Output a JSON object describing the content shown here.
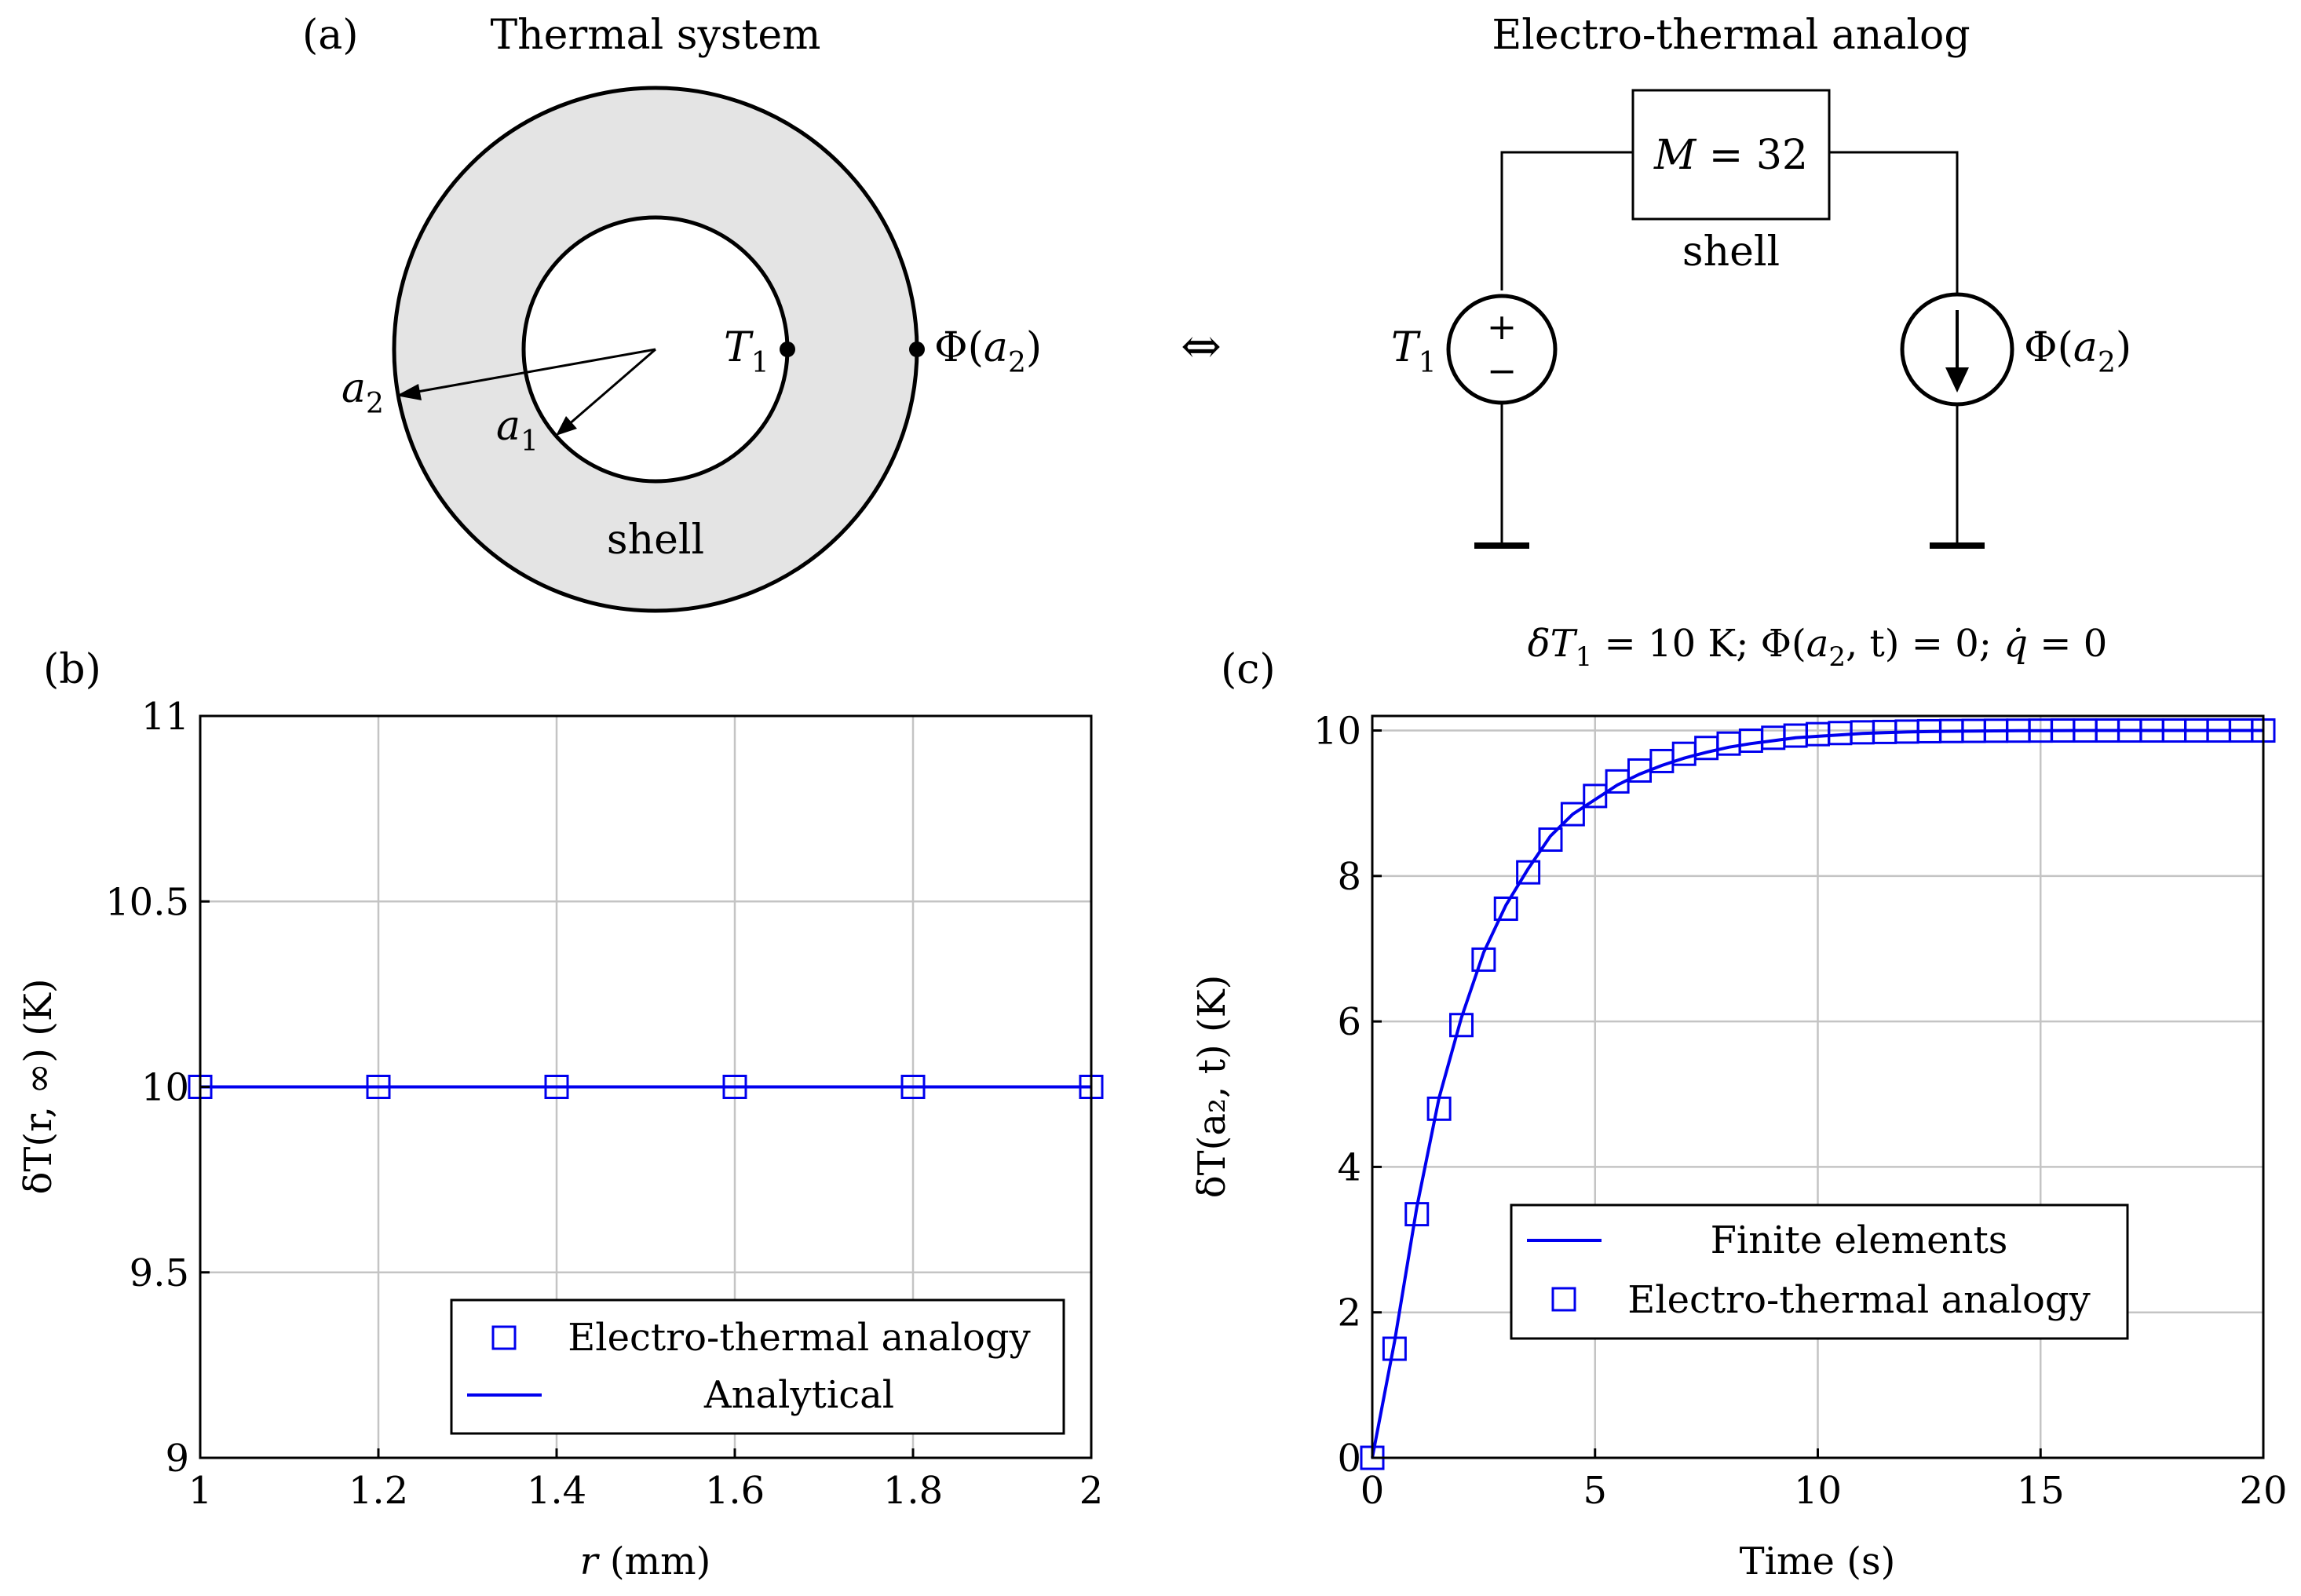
{
  "panel_a": {
    "label": "(a)",
    "thermal_title": "Thermal system",
    "analog_title": "Electro-thermal analog",
    "equivalence_symbol": "⇔",
    "shell_label": "shell",
    "a1_label": "a",
    "a1_sub": "1",
    "a2_label": "a",
    "a2_sub": "2",
    "t1_label": "T",
    "t1_sub": "1",
    "phi_label": "Φ(",
    "phi_var": "a",
    "phi_sub": "2",
    "phi_close": ")",
    "circuit": {
      "box_label": "M",
      "box_eq": " = 32",
      "box_caption": "shell",
      "src_label": "T",
      "src_sub": "1",
      "plus": "+",
      "minus": "−",
      "cur_label": "Φ(",
      "cur_var": "a",
      "cur_sub": "2",
      "cur_close": ")"
    },
    "colors": {
      "shell_fill": "#e4e4e4",
      "stroke": "#000000"
    }
  },
  "panel_b": {
    "label": "(b)",
    "chart_data": {
      "type": "line",
      "x": [
        1,
        1.2,
        1.4,
        1.6,
        1.8,
        2
      ],
      "series": [
        {
          "name": "Electro-thermal analogy",
          "marker": "square",
          "values": [
            10,
            10,
            10,
            10,
            10,
            10
          ]
        },
        {
          "name": "Analytical",
          "marker": "line",
          "values": [
            10,
            10,
            10,
            10,
            10,
            10
          ]
        }
      ],
      "xlim": [
        1,
        2
      ],
      "ylim": [
        9,
        11
      ],
      "xticks": [
        "1",
        "1.2",
        "1.4",
        "1.6",
        "1.8",
        "2"
      ],
      "yticks": [
        "9",
        "9.5",
        "10",
        "10.5",
        "11"
      ],
      "xlabel_var": "r",
      "xlabel_unit": " (mm)",
      "ylabel": "δT(r, ∞) (K)",
      "grid": true,
      "legend_position": "bottom-right",
      "color": "#0000ee"
    }
  },
  "panel_c": {
    "label": "(c)",
    "title_part1": "δT",
    "title_sub1": "1",
    "title_part2": " = 10 K; Φ(",
    "title_var": "a",
    "title_sub2": "2",
    "title_part3": ", t) = 0; ",
    "title_qdot": "q̇",
    "title_part4": " = 0",
    "chart_data": {
      "type": "line",
      "x": [
        0,
        0.5,
        1,
        1.5,
        2,
        2.5,
        3,
        3.5,
        4,
        4.5,
        5,
        5.5,
        6,
        6.5,
        7,
        7.5,
        8,
        8.5,
        9,
        9.5,
        10,
        10.5,
        11,
        11.5,
        12,
        12.5,
        13,
        13.5,
        14,
        14.5,
        15,
        15.5,
        16,
        16.5,
        17,
        17.5,
        18,
        18.5,
        19,
        19.5,
        20
      ],
      "series": [
        {
          "name": "Finite elements",
          "marker": "line",
          "values": [
            0,
            1.6,
            3.45,
            4.95,
            6.05,
            6.95,
            7.6,
            8.1,
            8.55,
            8.85,
            9.05,
            9.25,
            9.4,
            9.52,
            9.62,
            9.7,
            9.77,
            9.82,
            9.86,
            9.9,
            9.92,
            9.94,
            9.96,
            9.97,
            9.98,
            9.985,
            9.99,
            9.993,
            9.995,
            9.997,
            9.998,
            9.999,
            10,
            10,
            10,
            10,
            10,
            10,
            10,
            10,
            10
          ]
        },
        {
          "name": "Electro-thermal analogy",
          "marker": "square",
          "x": [
            0,
            0.5,
            1,
            1.5,
            2,
            2.5,
            3,
            3.5,
            4,
            4.5,
            5,
            5.5,
            6,
            6.5,
            7,
            7.5,
            8,
            8.5,
            9,
            9.5,
            10,
            10.5,
            11,
            11.5,
            12,
            12.5,
            13,
            13.5,
            14,
            14.5,
            15,
            15.5,
            16,
            16.5,
            17,
            17.5,
            18,
            18.5,
            19,
            19.5,
            20
          ],
          "values": [
            0,
            1.5,
            3.35,
            4.8,
            5.95,
            6.85,
            7.55,
            8.05,
            8.5,
            8.85,
            9.1,
            9.3,
            9.45,
            9.58,
            9.68,
            9.76,
            9.82,
            9.86,
            9.9,
            9.93,
            9.95,
            9.965,
            9.975,
            9.98,
            9.985,
            9.99,
            9.993,
            9.995,
            9.997,
            9.998,
            9.999,
            10,
            10,
            10,
            10,
            10,
            10,
            10,
            10,
            10,
            10
          ]
        }
      ],
      "xlim": [
        0,
        20
      ],
      "ylim": [
        0,
        10.2
      ],
      "xticks": [
        "0",
        "5",
        "10",
        "15",
        "20"
      ],
      "yticks": [
        "0",
        "2",
        "4",
        "6",
        "8",
        "10"
      ],
      "xlabel": "Time (s)",
      "ylabel": "δT(a₂, t) (K)",
      "grid": true,
      "legend_position": "center-right",
      "color": "#0000ee"
    }
  }
}
